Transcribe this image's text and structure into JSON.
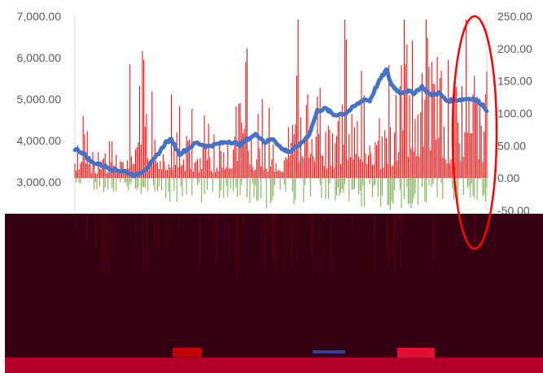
{
  "colors": {
    "line": "#4472C4",
    "positive_bars": "#FF0000",
    "negative_bars": "#70AD47",
    "annotation_ellipse": "#FF0000",
    "overlay_panel": "#330013",
    "bottom_band": "#B3002A",
    "legend_swatch_1": "#C00000",
    "legend_swatch_2": "#2F3FA6",
    "legend_swatch_3": "#E01030"
  },
  "chart_data": {
    "type": "line",
    "title": "",
    "xlabel": "",
    "ylabel": "",
    "ylim": [
      3000,
      7000
    ],
    "y2lim": [
      -50,
      250
    ],
    "y_ticks": [
      "7,000.00",
      "6,000.00",
      "5,000.00",
      "4,000.00",
      "3,000.00"
    ],
    "y2_ticks": [
      "250.00",
      "200.00",
      "150.00",
      "100.00",
      "50.00",
      "0.00",
      "-50.00"
    ],
    "grid": false,
    "legend": "bottom",
    "x_points": 300,
    "series": [
      {
        "axis": "left",
        "style": "line",
        "keypoints": [
          [
            0,
            3800
          ],
          [
            6,
            3700
          ],
          [
            12,
            3480
          ],
          [
            20,
            3400
          ],
          [
            28,
            3300
          ],
          [
            36,
            3260
          ],
          [
            44,
            3150
          ],
          [
            50,
            3280
          ],
          [
            56,
            3480
          ],
          [
            62,
            3750
          ],
          [
            66,
            3960
          ],
          [
            70,
            4020
          ],
          [
            76,
            3680
          ],
          [
            82,
            3800
          ],
          [
            88,
            3950
          ],
          [
            96,
            3860
          ],
          [
            104,
            3920
          ],
          [
            112,
            3980
          ],
          [
            120,
            3900
          ],
          [
            126,
            4050
          ],
          [
            132,
            4150
          ],
          [
            138,
            3960
          ],
          [
            144,
            4050
          ],
          [
            150,
            3800
          ],
          [
            156,
            3730
          ],
          [
            164,
            3920
          ],
          [
            170,
            4150
          ],
          [
            176,
            4720
          ],
          [
            182,
            4770
          ],
          [
            188,
            4620
          ],
          [
            196,
            4650
          ],
          [
            204,
            4850
          ],
          [
            210,
            5000
          ],
          [
            214,
            4960
          ],
          [
            218,
            5250
          ],
          [
            222,
            5500
          ],
          [
            226,
            5700
          ],
          [
            230,
            5340
          ],
          [
            236,
            5150
          ],
          [
            240,
            5200
          ],
          [
            246,
            5150
          ],
          [
            252,
            5300
          ],
          [
            258,
            5100
          ],
          [
            264,
            5150
          ],
          [
            270,
            4960
          ],
          [
            276,
            4980
          ],
          [
            282,
            5000
          ],
          [
            288,
            5020
          ],
          [
            292,
            4960
          ],
          [
            296,
            4860
          ],
          [
            300,
            4700
          ],
          [
            304,
            4250
          ],
          [
            308,
            4180
          ],
          [
            312,
            4100
          ],
          [
            316,
            3900
          ],
          [
            320,
            4000
          ]
        ]
      },
      {
        "axis": "right",
        "style": "bars",
        "keypoints": [
          [
            4,
            60
          ],
          [
            18,
            40
          ],
          [
            36,
            70
          ],
          [
            44,
            160
          ],
          [
            56,
            95
          ],
          [
            82,
            70
          ],
          [
            100,
            55
          ],
          [
            118,
            115
          ],
          [
            122,
            210
          ],
          [
            130,
            80
          ],
          [
            152,
            60
          ],
          [
            166,
            190
          ],
          [
            186,
            75
          ],
          [
            200,
            205
          ],
          [
            210,
            150
          ],
          [
            224,
            80
          ],
          [
            238,
            180
          ],
          [
            240,
            220
          ],
          [
            264,
            210
          ],
          [
            274,
            115
          ],
          [
            286,
            205
          ],
          [
            300,
            130
          ],
          [
            312,
            120
          ],
          [
            318,
            145
          ]
        ],
        "neg_keypoints": [
          [
            8,
            -25
          ],
          [
            24,
            -20
          ],
          [
            54,
            -25
          ],
          [
            70,
            -35
          ],
          [
            72,
            -45
          ],
          [
            104,
            -30
          ],
          [
            140,
            -45
          ],
          [
            146,
            -35
          ],
          [
            160,
            -40
          ],
          [
            196,
            -40
          ],
          [
            218,
            -45
          ],
          [
            250,
            -45
          ],
          [
            260,
            -30
          ],
          [
            268,
            -40
          ],
          [
            290,
            -40
          ],
          [
            306,
            -30
          ],
          [
            314,
            -40
          ]
        ]
      }
    ]
  }
}
